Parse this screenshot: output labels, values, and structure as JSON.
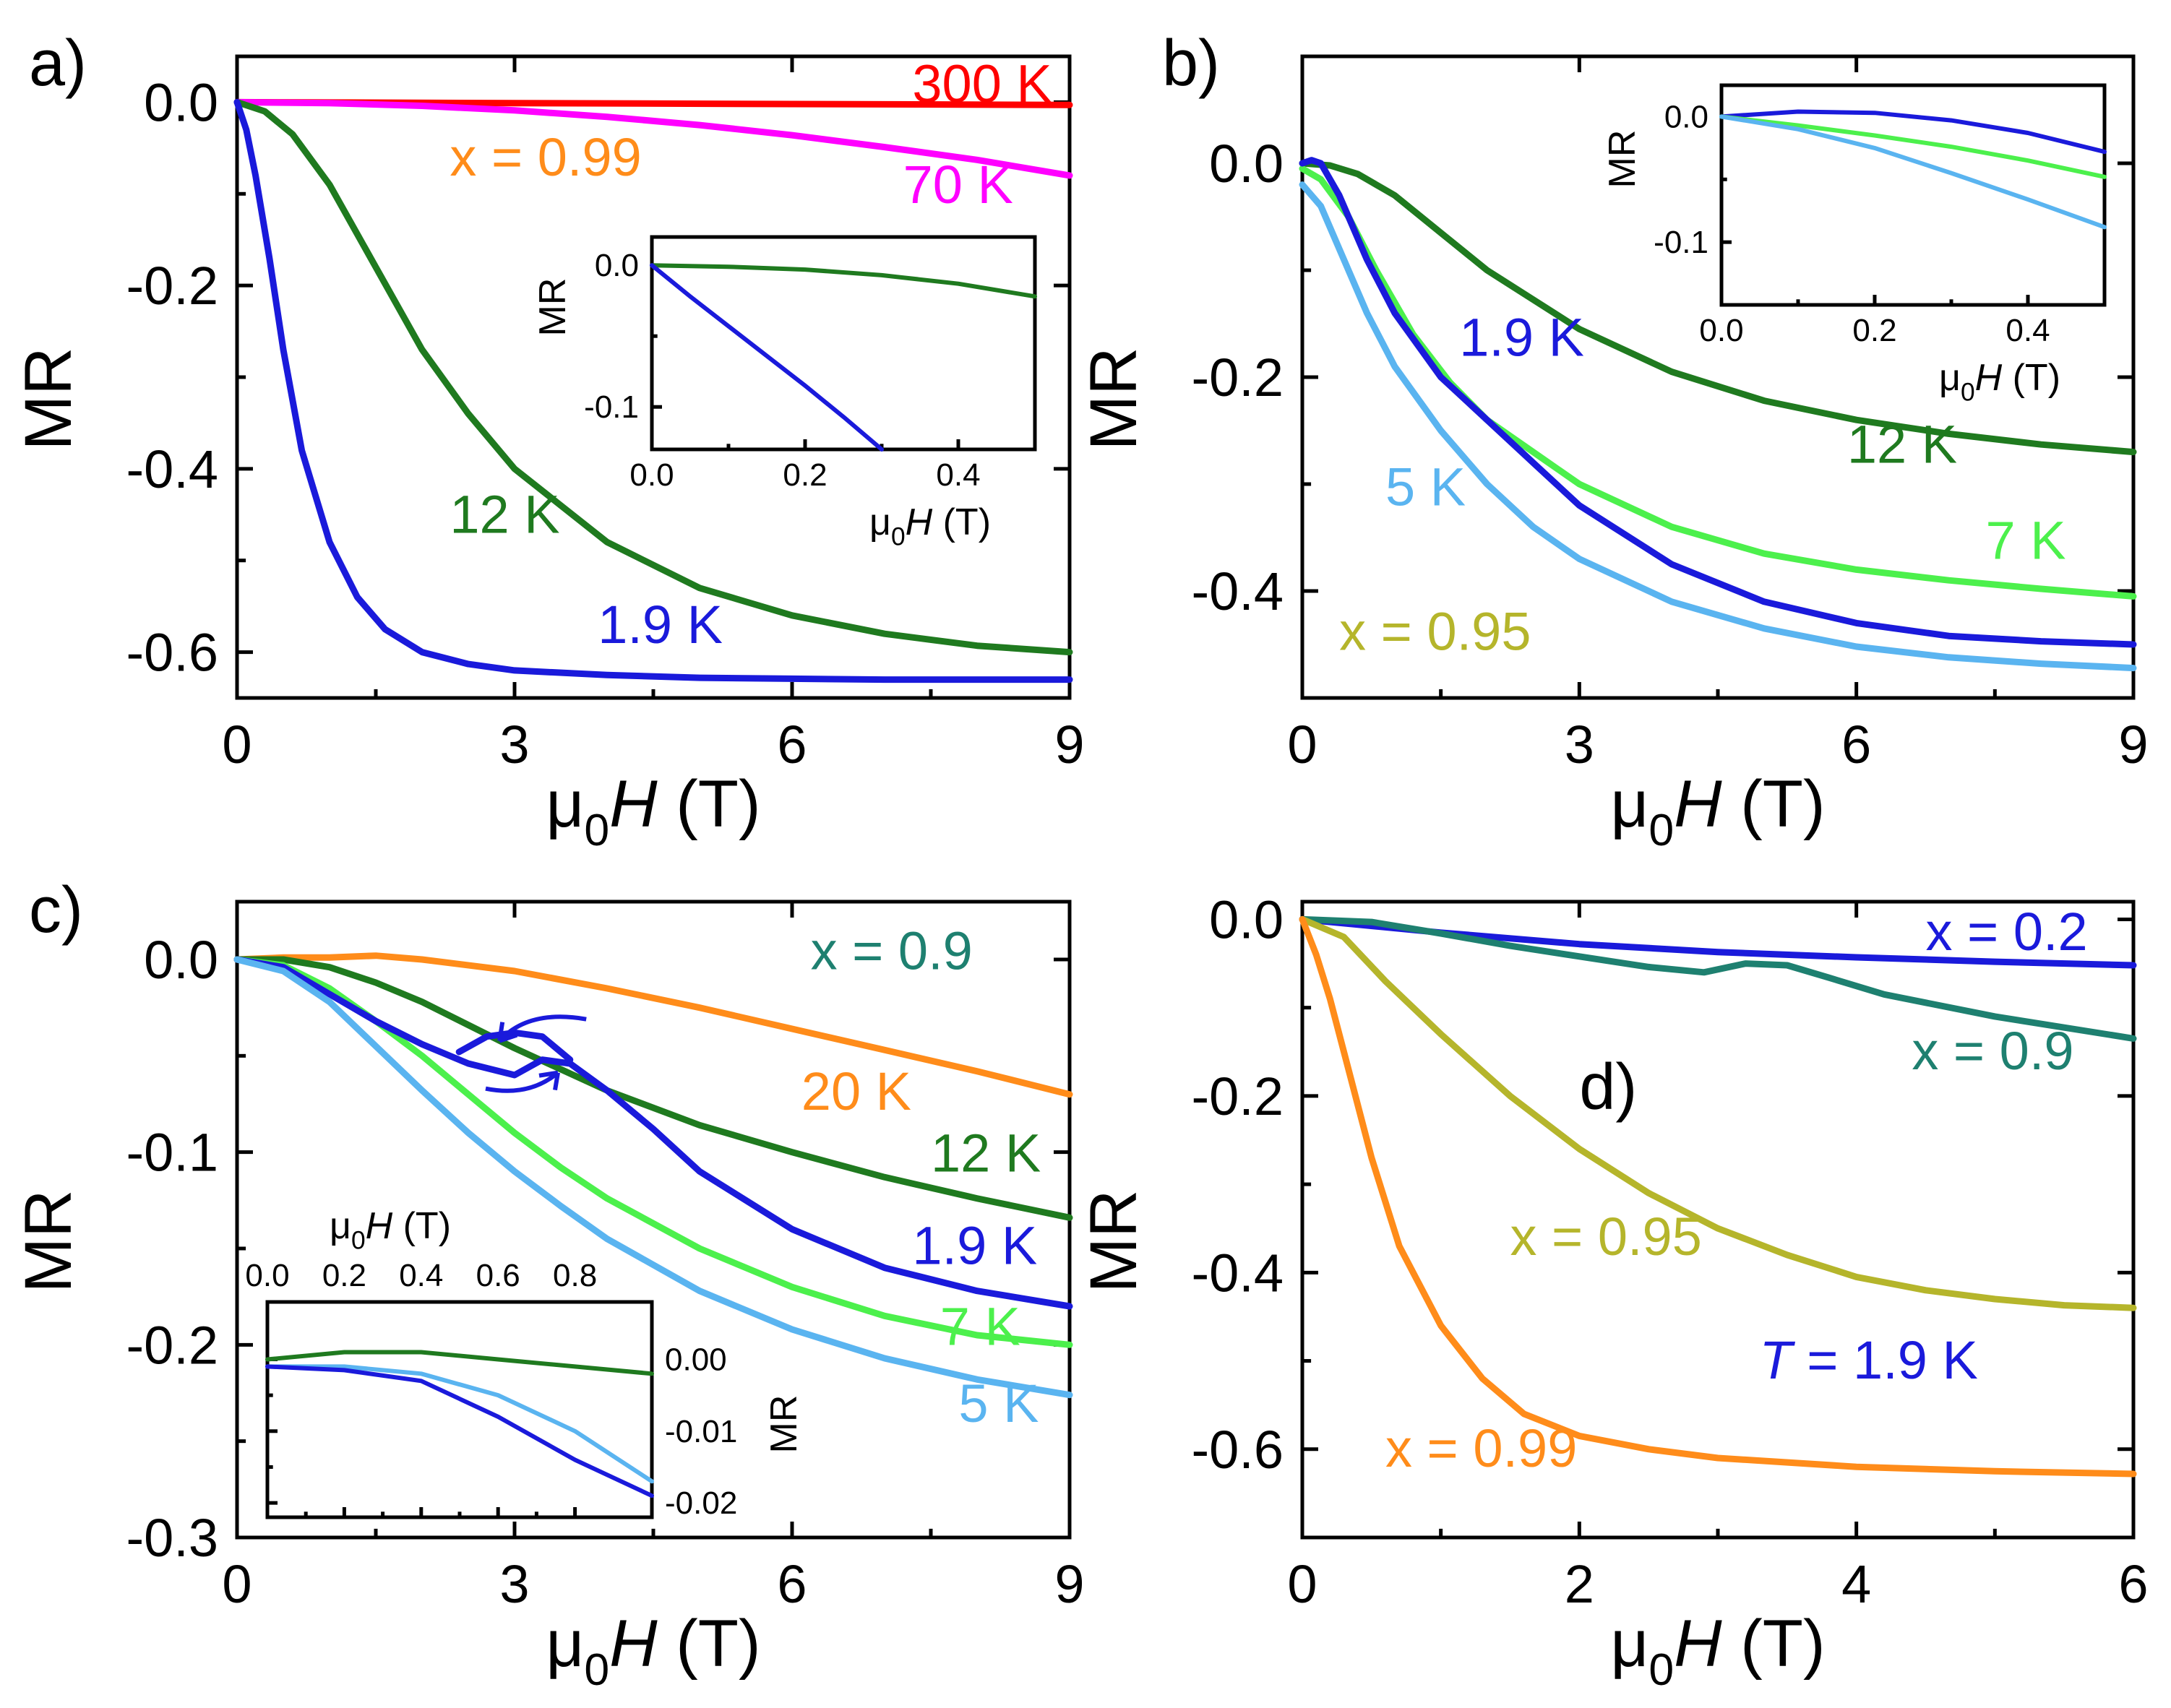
{
  "chart_data": [
    {
      "panel_label": "a)",
      "type": "line",
      "xlabel": "μ0H (T)",
      "ylabel": "MR",
      "xlim": [
        0,
        9
      ],
      "ylim": [
        -0.65,
        0.05
      ],
      "xticks": [
        0,
        3,
        6,
        9
      ],
      "yticks": [
        0.0,
        -0.2,
        -0.4,
        -0.6
      ],
      "annotations": [
        {
          "text": "x = 0.99",
          "color": "#ff8c1a",
          "x": 2.3,
          "y": -0.08
        },
        {
          "text": "300 K",
          "color": "#ff0000",
          "x": 7.3,
          "y": 0.0
        },
        {
          "text": "70 K",
          "color": "#ff00ff",
          "x": 7.2,
          "y": -0.11
        },
        {
          "text": "12 K",
          "color": "#1f7a1f",
          "x": 2.3,
          "y": -0.47
        },
        {
          "text": "1.9 K",
          "color": "#1a1adb",
          "x": 3.9,
          "y": -0.59
        }
      ],
      "series": [
        {
          "name": "300 K",
          "color": "#ff0000",
          "x": [
            0,
            3,
            6,
            9
          ],
          "y": [
            0,
            -0.001,
            -0.002,
            -0.003
          ]
        },
        {
          "name": "70 K",
          "color": "#ff00ff",
          "x": [
            0,
            1,
            2,
            3,
            4,
            5,
            6,
            7,
            8,
            9
          ],
          "y": [
            0,
            -0.001,
            -0.004,
            -0.009,
            -0.016,
            -0.025,
            -0.036,
            -0.049,
            -0.063,
            -0.08
          ]
        },
        {
          "name": "12 K",
          "color": "#1f7a1f",
          "x": [
            0,
            0.3,
            0.6,
            1.0,
            1.5,
            2.0,
            2.5,
            3.0,
            3.5,
            4.0,
            5.0,
            6.0,
            7.0,
            8.0,
            9.0
          ],
          "y": [
            0,
            -0.01,
            -0.035,
            -0.09,
            -0.18,
            -0.27,
            -0.34,
            -0.4,
            -0.44,
            -0.48,
            -0.53,
            -0.56,
            -0.58,
            -0.593,
            -0.6
          ]
        },
        {
          "name": "1.9 K",
          "color": "#1a1adb",
          "x": [
            0,
            0.1,
            0.2,
            0.35,
            0.5,
            0.7,
            1.0,
            1.3,
            1.6,
            2.0,
            2.5,
            3.0,
            4.0,
            5.0,
            6.0,
            7.0,
            9.0
          ],
          "y": [
            0,
            -0.03,
            -0.08,
            -0.17,
            -0.27,
            -0.38,
            -0.48,
            -0.54,
            -0.575,
            -0.6,
            -0.613,
            -0.62,
            -0.625,
            -0.628,
            -0.629,
            -0.63,
            -0.63
          ]
        }
      ],
      "inset": {
        "xlabel": "μ0H (T)",
        "ylabel": "MR",
        "xlim": [
          0,
          0.5
        ],
        "ylim": [
          -0.13,
          0.02
        ],
        "xticks": [
          0.0,
          0.2,
          0.4
        ],
        "yticks": [
          0.0,
          -0.1
        ],
        "series": [
          {
            "name": "12 K",
            "color": "#1f7a1f",
            "x": [
              0,
              0.1,
              0.2,
              0.3,
              0.4,
              0.5
            ],
            "y": [
              0,
              -0.001,
              -0.003,
              -0.007,
              -0.013,
              -0.022
            ]
          },
          {
            "name": "1.9 K",
            "color": "#1a1adb",
            "x": [
              0,
              0.05,
              0.1,
              0.15,
              0.2,
              0.25,
              0.3
            ],
            "y": [
              0,
              -0.022,
              -0.043,
              -0.064,
              -0.085,
              -0.107,
              -0.13
            ]
          }
        ]
      }
    },
    {
      "panel_label": "b)",
      "type": "line",
      "xlabel": "μ0H (T)",
      "ylabel": "MR",
      "xlim": [
        0,
        9
      ],
      "ylim": [
        -0.5,
        0.1
      ],
      "xticks": [
        0,
        3,
        6,
        9
      ],
      "yticks": [
        0.0,
        -0.2,
        -0.4
      ],
      "annotations": [
        {
          "text": "1.9 K",
          "color": "#1a1adb",
          "x": 1.7,
          "y": -0.18
        },
        {
          "text": "12 K",
          "color": "#1f7a1f",
          "x": 5.9,
          "y": -0.28
        },
        {
          "text": "5 K",
          "color": "#5ab4f0",
          "x": 0.9,
          "y": -0.32
        },
        {
          "text": "7 K",
          "color": "#4cf04c",
          "x": 7.4,
          "y": -0.37
        },
        {
          "text": "x = 0.95",
          "color": "#b5b52b",
          "x": 0.4,
          "y": -0.455
        }
      ],
      "series": [
        {
          "name": "12 K",
          "color": "#1f7a1f",
          "x": [
            0,
            0.3,
            0.6,
            1.0,
            1.5,
            2.0,
            3.0,
            4.0,
            5.0,
            6.0,
            7.0,
            8.0,
            9.0
          ],
          "y": [
            0,
            -0.002,
            -0.01,
            -0.03,
            -0.065,
            -0.1,
            -0.155,
            -0.195,
            -0.222,
            -0.24,
            -0.253,
            -0.263,
            -0.27
          ]
        },
        {
          "name": "7 K",
          "color": "#4cf04c",
          "x": [
            0,
            0.2,
            0.5,
            0.8,
            1.2,
            1.6,
            2.0,
            2.5,
            3.0,
            4.0,
            5.0,
            6.0,
            7.0,
            8.0,
            9.0
          ],
          "y": [
            -0.005,
            -0.015,
            -0.05,
            -0.1,
            -0.16,
            -0.205,
            -0.24,
            -0.27,
            -0.3,
            -0.34,
            -0.365,
            -0.38,
            -0.39,
            -0.398,
            -0.405
          ]
        },
        {
          "name": "1.9 K",
          "color": "#1a1adb",
          "x": [
            0,
            0.1,
            0.2,
            0.4,
            0.7,
            1.0,
            1.5,
            2.0,
            2.5,
            3.0,
            4.0,
            5.0,
            6.0,
            7.0,
            8.0,
            9.0
          ],
          "y": [
            0,
            0.003,
            0.0,
            -0.03,
            -0.09,
            -0.14,
            -0.2,
            -0.24,
            -0.28,
            -0.32,
            -0.375,
            -0.41,
            -0.43,
            -0.442,
            -0.447,
            -0.45
          ]
        },
        {
          "name": "5 K",
          "color": "#5ab4f0",
          "x": [
            0,
            0.2,
            0.4,
            0.7,
            1.0,
            1.5,
            2.0,
            2.5,
            3.0,
            4.0,
            5.0,
            6.0,
            7.0,
            8.0,
            9.0
          ],
          "y": [
            -0.02,
            -0.04,
            -0.08,
            -0.14,
            -0.19,
            -0.25,
            -0.3,
            -0.34,
            -0.37,
            -0.41,
            -0.435,
            -0.452,
            -0.462,
            -0.468,
            -0.472
          ]
        }
      ],
      "inset": {
        "xlabel": "μ0H (T)",
        "ylabel": "MR",
        "xlim": [
          0,
          0.5
        ],
        "ylim": [
          -0.15,
          0.025
        ],
        "xticks": [
          0.0,
          0.2,
          0.4
        ],
        "yticks": [
          0.0,
          -0.1
        ],
        "series": [
          {
            "name": "1.9 K",
            "color": "#1a1adb",
            "x": [
              0,
              0.1,
              0.2,
              0.3,
              0.4,
              0.5
            ],
            "y": [
              0,
              0.004,
              0.003,
              -0.003,
              -0.013,
              -0.028
            ]
          },
          {
            "name": "7 K",
            "color": "#4cf04c",
            "x": [
              0,
              0.1,
              0.2,
              0.3,
              0.4,
              0.5
            ],
            "y": [
              0,
              -0.007,
              -0.015,
              -0.024,
              -0.035,
              -0.048
            ]
          },
          {
            "name": "5 K",
            "color": "#5ab4f0",
            "x": [
              0,
              0.1,
              0.2,
              0.3,
              0.4,
              0.5
            ],
            "y": [
              0,
              -0.01,
              -0.025,
              -0.045,
              -0.066,
              -0.088
            ]
          }
        ]
      }
    },
    {
      "panel_label": "c)",
      "type": "line",
      "xlabel": "μ0H (T)",
      "ylabel": "MR",
      "xlim": [
        0,
        9
      ],
      "ylim": [
        -0.3,
        0.03
      ],
      "xticks": [
        0,
        3,
        6,
        9
      ],
      "yticks": [
        0.0,
        -0.1,
        -0.2,
        -0.3
      ],
      "annotations": [
        {
          "text": "x = 0.9",
          "color": "#1e8070",
          "x": 6.2,
          "y": -0.005
        },
        {
          "text": "20 K",
          "color": "#ff8c1a",
          "x": 6.1,
          "y": -0.078
        },
        {
          "text": "12 K",
          "color": "#1f7a1f",
          "x": 7.5,
          "y": -0.11
        },
        {
          "text": "1.9 K",
          "color": "#1a1adb",
          "x": 7.3,
          "y": -0.158
        },
        {
          "text": "7 K",
          "color": "#4cf04c",
          "x": 7.6,
          "y": -0.2
        },
        {
          "text": "5 K",
          "color": "#5ab4f0",
          "x": 7.8,
          "y": -0.24
        }
      ],
      "series": [
        {
          "name": "20 K",
          "color": "#ff8c1a",
          "x": [
            0,
            0.5,
            1.0,
            1.5,
            2.0,
            3.0,
            4.0,
            5.0,
            6.0,
            7.0,
            8.0,
            9.0
          ],
          "y": [
            0,
            0.001,
            0.001,
            0.002,
            0.0,
            -0.006,
            -0.015,
            -0.025,
            -0.036,
            -0.047,
            -0.058,
            -0.07
          ]
        },
        {
          "name": "12 K",
          "color": "#1f7a1f",
          "x": [
            0,
            0.5,
            1.0,
            1.5,
            2.0,
            2.5,
            3.0,
            4.0,
            5.0,
            6.0,
            7.0,
            8.0,
            9.0
          ],
          "y": [
            0,
            0.0,
            -0.004,
            -0.012,
            -0.022,
            -0.034,
            -0.046,
            -0.068,
            -0.086,
            -0.1,
            -0.113,
            -0.124,
            -0.134
          ]
        },
        {
          "name": "7 K",
          "color": "#4cf04c",
          "x": [
            0,
            0.5,
            1.0,
            1.5,
            2.0,
            2.5,
            3.0,
            3.5,
            4.0,
            5.0,
            6.0,
            7.0,
            8.0,
            9.0
          ],
          "y": [
            0,
            -0.003,
            -0.015,
            -0.032,
            -0.05,
            -0.07,
            -0.09,
            -0.108,
            -0.124,
            -0.15,
            -0.17,
            -0.185,
            -0.195,
            -0.2
          ]
        },
        {
          "name": "1.9 K",
          "color": "#1a1adb",
          "x": [
            0,
            0.5,
            1.0,
            1.5,
            2.0,
            2.5,
            3.0,
            3.3,
            3.6,
            4.0,
            4.5,
            5.0,
            6.0,
            7.0,
            8.0,
            9.0
          ],
          "y": [
            0,
            -0.004,
            -0.018,
            -0.032,
            -0.044,
            -0.054,
            -0.06,
            -0.052,
            -0.054,
            -0.068,
            -0.088,
            -0.11,
            -0.14,
            -0.16,
            -0.172,
            -0.18
          ]
        },
        {
          "name": "1.9 K (return)",
          "color": "#1a1adb",
          "x": [
            2.4,
            2.7,
            3.0,
            3.3,
            3.6
          ],
          "y": [
            -0.048,
            -0.04,
            -0.038,
            -0.04,
            -0.052
          ]
        },
        {
          "name": "5 K",
          "color": "#5ab4f0",
          "x": [
            0,
            0.5,
            1.0,
            1.5,
            2.0,
            2.5,
            3.0,
            3.5,
            4.0,
            5.0,
            6.0,
            7.0,
            8.0,
            9.0
          ],
          "y": [
            0,
            -0.006,
            -0.022,
            -0.045,
            -0.068,
            -0.09,
            -0.11,
            -0.128,
            -0.145,
            -0.172,
            -0.192,
            -0.207,
            -0.218,
            -0.226
          ]
        }
      ],
      "inset": {
        "xlabel": "μ0H (T)",
        "ylabel": "MR",
        "xlim": [
          0,
          1.0
        ],
        "ylim": [
          -0.022,
          0.008
        ],
        "xticks": [
          0.0,
          0.2,
          0.4,
          0.6,
          0.8
        ],
        "yticks": [
          0.0,
          -0.01,
          -0.02
        ],
        "yticklabels": [
          "0.00",
          "-0.01",
          "-0.02"
        ],
        "series": [
          {
            "name": "12 K",
            "color": "#1f7a1f",
            "x": [
              0,
              0.2,
              0.4,
              0.6,
              0.8,
              1.0
            ],
            "y": [
              0,
              0.001,
              0.001,
              0.0,
              -0.001,
              -0.002
            ]
          },
          {
            "name": "5 K",
            "color": "#5ab4f0",
            "x": [
              0,
              0.2,
              0.4,
              0.6,
              0.8,
              1.0
            ],
            "y": [
              -0.001,
              -0.001,
              -0.002,
              -0.005,
              -0.01,
              -0.017
            ]
          },
          {
            "name": "1.9 K",
            "color": "#1a1adb",
            "x": [
              0,
              0.2,
              0.4,
              0.6,
              0.8,
              1.0
            ],
            "y": [
              -0.001,
              -0.0015,
              -0.003,
              -0.008,
              -0.014,
              -0.019
            ]
          }
        ]
      }
    },
    {
      "panel_label": "d)",
      "type": "line",
      "xlabel": "μ0H (T)",
      "ylabel": "MR",
      "xlim": [
        0,
        6
      ],
      "ylim": [
        -0.7,
        0.02
      ],
      "xticks": [
        0,
        2,
        4,
        6
      ],
      "yticks": [
        0.0,
        -0.2,
        -0.4,
        -0.6
      ],
      "annotations": [
        {
          "text": "x = 0.2",
          "color": "#1a1adb",
          "x": 4.5,
          "y": -0.035
        },
        {
          "text": "x = 0.9",
          "color": "#1e8070",
          "x": 4.4,
          "y": -0.17
        },
        {
          "text": "x = 0.95",
          "color": "#b5b52b",
          "x": 1.5,
          "y": -0.38
        },
        {
          "text": "x = 0.99",
          "color": "#ff8c1a",
          "x": 0.6,
          "y": -0.62
        },
        {
          "text": "T = 1.9 K",
          "color": "#1a1adb",
          "x": 3.3,
          "y": -0.52
        }
      ],
      "series": [
        {
          "name": "x = 0.2",
          "color": "#1a1adb",
          "x": [
            0,
            1,
            2,
            3,
            4,
            5,
            6
          ],
          "y": [
            0,
            -0.015,
            -0.028,
            -0.037,
            -0.043,
            -0.048,
            -0.052
          ]
        },
        {
          "name": "x = 0.9",
          "color": "#1e8070",
          "x": [
            0,
            0.5,
            1.0,
            1.5,
            2.0,
            2.5,
            2.9,
            3.2,
            3.5,
            3.8,
            4.2,
            5.0,
            6.0
          ],
          "y": [
            0,
            -0.003,
            -0.016,
            -0.03,
            -0.042,
            -0.054,
            -0.06,
            -0.05,
            -0.052,
            -0.066,
            -0.085,
            -0.11,
            -0.135
          ]
        },
        {
          "name": "x = 0.95",
          "color": "#b5b52b",
          "x": [
            0,
            0.3,
            0.6,
            1.0,
            1.5,
            2.0,
            2.5,
            3.0,
            3.5,
            4.0,
            4.5,
            5.0,
            5.5,
            6.0
          ],
          "y": [
            0,
            -0.02,
            -0.07,
            -0.13,
            -0.2,
            -0.26,
            -0.31,
            -0.35,
            -0.38,
            -0.405,
            -0.42,
            -0.43,
            -0.437,
            -0.44
          ]
        },
        {
          "name": "x = 0.99",
          "color": "#ff8c1a",
          "x": [
            0,
            0.1,
            0.2,
            0.35,
            0.5,
            0.7,
            1.0,
            1.3,
            1.6,
            2.0,
            2.5,
            3.0,
            4.0,
            5.0,
            6.0
          ],
          "y": [
            0,
            -0.04,
            -0.09,
            -0.18,
            -0.27,
            -0.37,
            -0.46,
            -0.52,
            -0.56,
            -0.585,
            -0.6,
            -0.61,
            -0.62,
            -0.625,
            -0.628
          ]
        }
      ]
    }
  ]
}
